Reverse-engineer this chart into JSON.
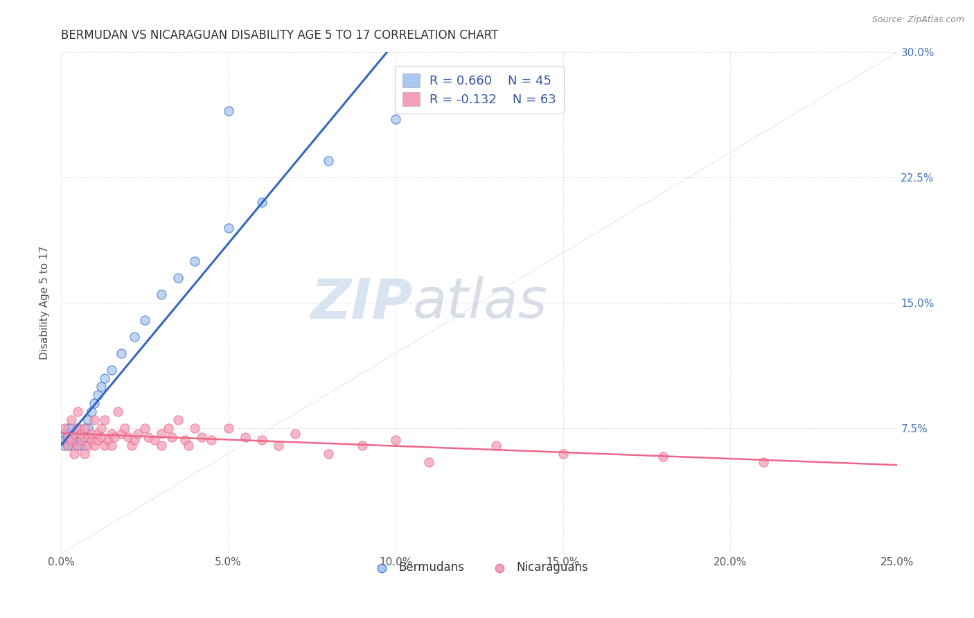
{
  "title": "BERMUDAN VS NICARAGUAN DISABILITY AGE 5 TO 17 CORRELATION CHART",
  "source": "Source: ZipAtlas.com",
  "ylabel": "Disability Age 5 to 17",
  "xlim": [
    0.0,
    0.25
  ],
  "ylim": [
    0.0,
    0.3
  ],
  "xticks": [
    0.0,
    0.05,
    0.1,
    0.15,
    0.2,
    0.25
  ],
  "xticklabels": [
    "0.0%",
    "5.0%",
    "10.0%",
    "15.0%",
    "20.0%",
    "25.0%"
  ],
  "yticks_right": [
    0.0,
    0.075,
    0.15,
    0.225,
    0.3
  ],
  "yticklabels_right": [
    "",
    "7.5%",
    "15.0%",
    "22.5%",
    "30.0%"
  ],
  "bermudans_color": "#A8C8F0",
  "nicaraguans_color": "#F4A0B8",
  "bermudans_line_color": "#3366CC",
  "nicaraguans_line_color": "#EE6688",
  "R_bermudans": 0.66,
  "N_bermudans": 45,
  "R_nicaraguans": -0.132,
  "N_nicaraguans": 63,
  "background_color": "#FFFFFF",
  "grid_color": "#CCCCCC",
  "title_color": "#333333",
  "watermark_color": "#D8E4F0",
  "legend_label_bermudans": "Bermudans",
  "legend_label_nicaraguans": "Nicaraguans",
  "bermudans_x": [
    0.0,
    0.001,
    0.001,
    0.001,
    0.002,
    0.002,
    0.002,
    0.002,
    0.002,
    0.003,
    0.003,
    0.003,
    0.003,
    0.004,
    0.004,
    0.004,
    0.005,
    0.005,
    0.005,
    0.005,
    0.006,
    0.006,
    0.006,
    0.007,
    0.007,
    0.007,
    0.008,
    0.008,
    0.009,
    0.01,
    0.011,
    0.012,
    0.013,
    0.015,
    0.018,
    0.022,
    0.025,
    0.03,
    0.035,
    0.04,
    0.05,
    0.06,
    0.08,
    0.1,
    0.05
  ],
  "bermudans_y": [
    0.07,
    0.065,
    0.072,
    0.068,
    0.075,
    0.07,
    0.065,
    0.068,
    0.072,
    0.07,
    0.065,
    0.075,
    0.068,
    0.07,
    0.065,
    0.072,
    0.075,
    0.07,
    0.065,
    0.068,
    0.072,
    0.07,
    0.065,
    0.075,
    0.07,
    0.065,
    0.08,
    0.075,
    0.085,
    0.09,
    0.095,
    0.1,
    0.105,
    0.11,
    0.12,
    0.13,
    0.14,
    0.155,
    0.165,
    0.175,
    0.195,
    0.21,
    0.235,
    0.26,
    0.265
  ],
  "nicaraguans_x": [
    0.001,
    0.002,
    0.002,
    0.003,
    0.003,
    0.004,
    0.004,
    0.005,
    0.005,
    0.005,
    0.006,
    0.006,
    0.007,
    0.007,
    0.008,
    0.008,
    0.009,
    0.009,
    0.01,
    0.01,
    0.011,
    0.011,
    0.012,
    0.012,
    0.013,
    0.013,
    0.014,
    0.015,
    0.015,
    0.016,
    0.017,
    0.018,
    0.019,
    0.02,
    0.021,
    0.022,
    0.023,
    0.025,
    0.026,
    0.028,
    0.03,
    0.03,
    0.032,
    0.033,
    0.035,
    0.037,
    0.038,
    0.04,
    0.042,
    0.045,
    0.05,
    0.055,
    0.06,
    0.065,
    0.07,
    0.08,
    0.09,
    0.1,
    0.11,
    0.13,
    0.15,
    0.18,
    0.21
  ],
  "nicaraguans_y": [
    0.075,
    0.07,
    0.065,
    0.08,
    0.068,
    0.072,
    0.06,
    0.065,
    0.075,
    0.085,
    0.068,
    0.072,
    0.06,
    0.075,
    0.065,
    0.07,
    0.068,
    0.072,
    0.065,
    0.08,
    0.068,
    0.072,
    0.075,
    0.07,
    0.065,
    0.08,
    0.068,
    0.072,
    0.065,
    0.07,
    0.085,
    0.072,
    0.075,
    0.07,
    0.065,
    0.068,
    0.072,
    0.075,
    0.07,
    0.068,
    0.065,
    0.072,
    0.075,
    0.07,
    0.08,
    0.068,
    0.065,
    0.075,
    0.07,
    0.068,
    0.075,
    0.07,
    0.068,
    0.065,
    0.072,
    0.06,
    0.065,
    0.068,
    0.055,
    0.065,
    0.06,
    0.058,
    0.055
  ]
}
